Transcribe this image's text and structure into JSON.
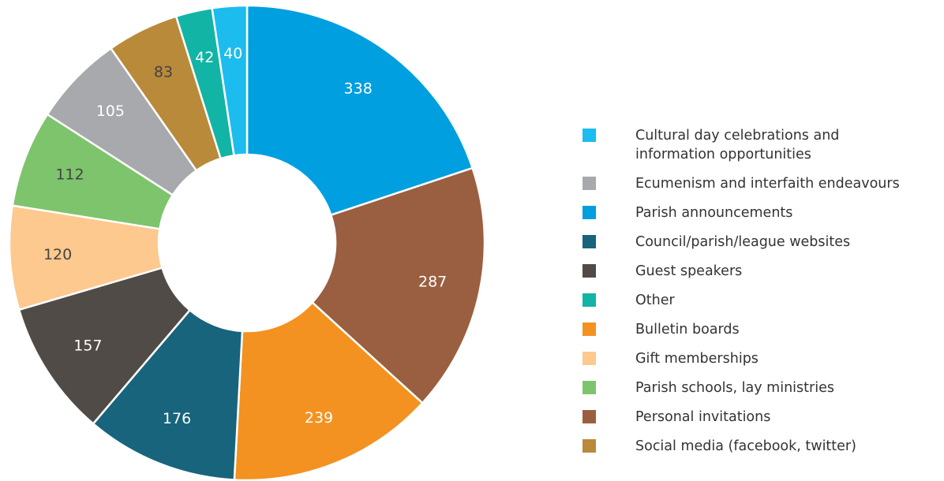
{
  "chart_data": {
    "type": "donut",
    "categories": [
      "Cultural day celebrations and information opportunities",
      "Ecumenism and interfaith endeavours",
      "Parish announcements",
      "Council/parish/league websites",
      "Guest speakers",
      "Other",
      "Bulletin boards",
      "Gift memberships",
      "Parish schools, lay ministries",
      "Personal invitations",
      "Social media (facebook, twitter)"
    ],
    "values": [
      40,
      105,
      338,
      176,
      157,
      42,
      239,
      120,
      112,
      287,
      83
    ],
    "colors": [
      "#1cbcef",
      "#a7a9ac",
      "#009fe0",
      "#17647c",
      "#514b47",
      "#12b4a6",
      "#f39220",
      "#fdc98e",
      "#7ec46d",
      "#9a5f40",
      "#b98a3a"
    ],
    "label_colors": [
      "#ffffff",
      "#ffffff",
      "#ffffff",
      "#ffffff",
      "#ffffff",
      "#ffffff",
      "#ffffff",
      "#444444",
      "#444444",
      "#ffffff",
      "#444444"
    ],
    "slice_order": "descending",
    "legend_position": "right"
  }
}
